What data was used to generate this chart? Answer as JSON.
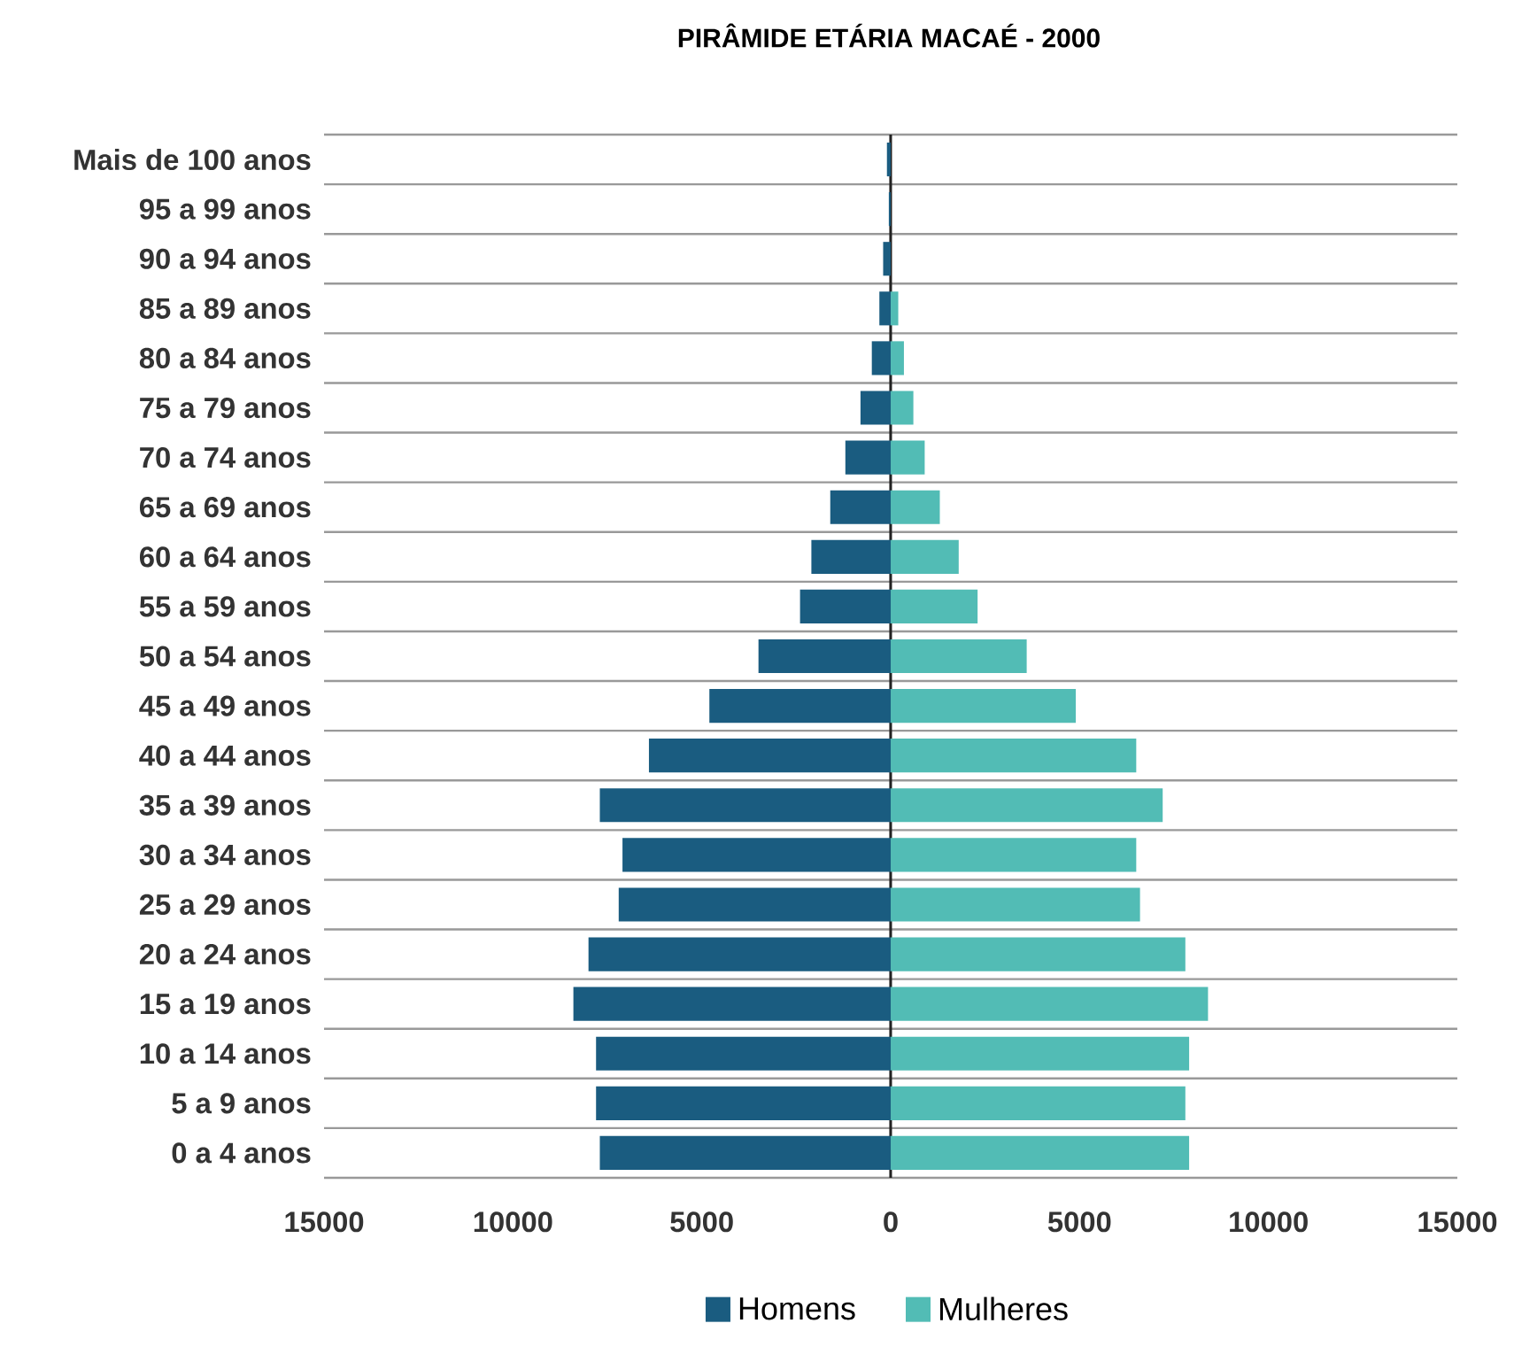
{
  "chart_data": {
    "type": "bar",
    "orientation": "horizontal",
    "title": "PIRÂMIDE ETÁRIA MACAÉ - 2000",
    "categories": [
      "Mais de 100 anos",
      "95 a 99 anos",
      "90 a 94 anos",
      "85 a 89 anos",
      "80 a 84 anos",
      "75 a 79 anos",
      "70 a 74 anos",
      "65 a 69 anos",
      "60 a 64 anos",
      "55 a 59 anos",
      "50 a 54 anos",
      "45 a 49 anos",
      "40 a 44 anos",
      "35 a 39 anos",
      "30 a 34 anos",
      "25 a 29 anos",
      "20 a 24 anos",
      "15 a 19 anos",
      "10 a 14 anos",
      "5 a 9 anos",
      "0 a 4 anos"
    ],
    "series": [
      {
        "name": "Homens",
        "color": "#1a5c80",
        "values": [
          -100,
          -50,
          -200,
          -300,
          -500,
          -800,
          -1200,
          -1600,
          -2100,
          -2400,
          -3500,
          -4800,
          -6400,
          -7700,
          -7100,
          -7200,
          -8000,
          -8400,
          -7800,
          -7800,
          -7700
        ]
      },
      {
        "name": "Mulheres",
        "color": "#52bcb5",
        "values": [
          0,
          0,
          0,
          200,
          350,
          600,
          900,
          1300,
          1800,
          2300,
          3600,
          4900,
          6500,
          7200,
          6500,
          6600,
          7800,
          8400,
          7900,
          7800,
          7900
        ]
      }
    ],
    "xlim": [
      -15000,
      15000
    ],
    "xticks": [
      {
        "value": -15000,
        "label": "15000"
      },
      {
        "value": -10000,
        "label": "10000"
      },
      {
        "value": -5000,
        "label": "5000"
      },
      0,
      5000,
      10000,
      15000
    ],
    "ref_lines": [
      {
        "axis": "x",
        "value": 0,
        "color": "#222222"
      }
    ],
    "grid": "y",
    "legend": "bottom",
    "stacked": true
  }
}
